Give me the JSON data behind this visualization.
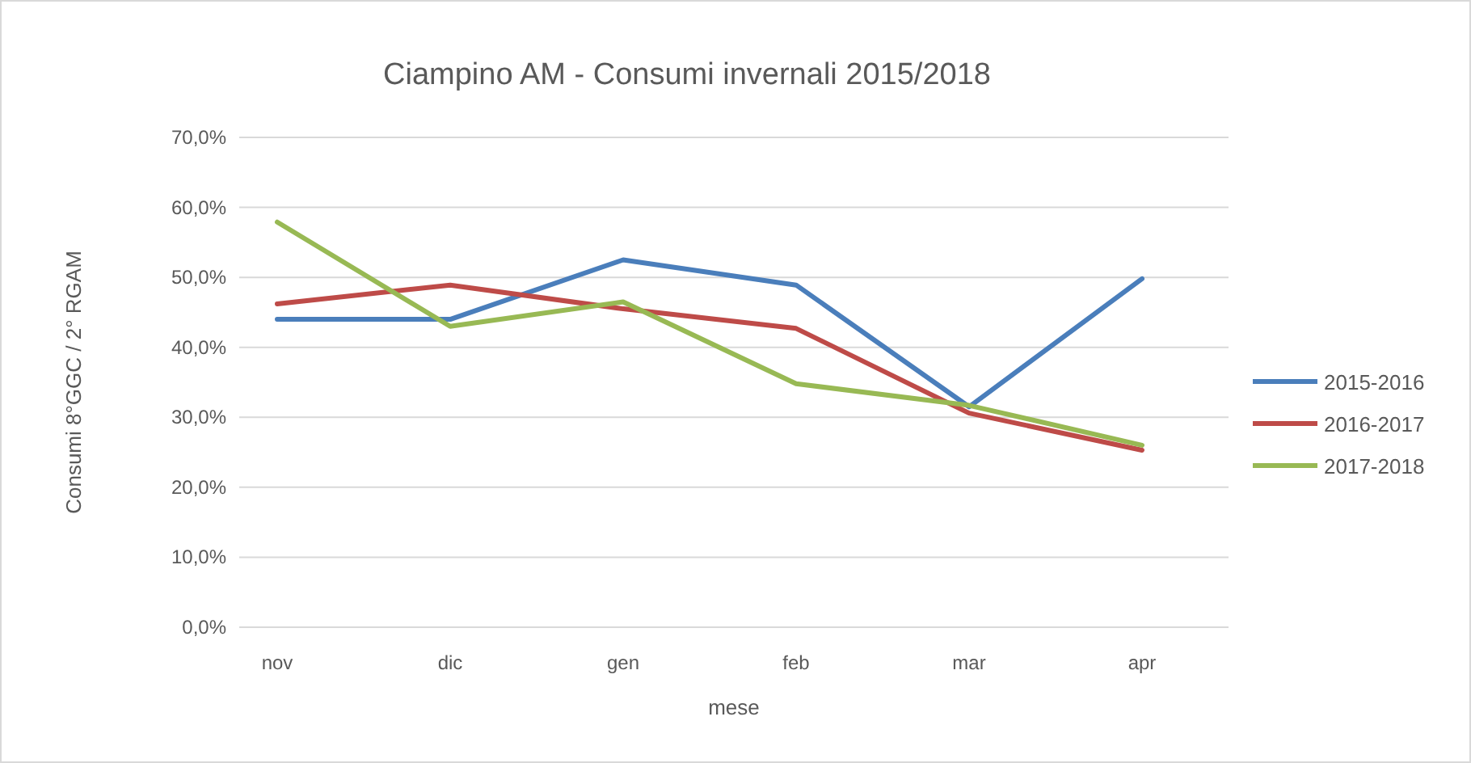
{
  "chart_data": {
    "type": "line",
    "title": "Ciampino AM - Consumi invernali 2015/2018",
    "xlabel": "mese",
    "ylabel": "Consumi 8°GGC / 2° RGAM",
    "categories": [
      "nov",
      "dic",
      "gen",
      "feb",
      "mar",
      "apr"
    ],
    "series": [
      {
        "name": "2015-2016",
        "color": "#4a7ebb",
        "values": [
          44.0,
          44.0,
          52.5,
          48.9,
          31.5,
          49.8
        ]
      },
      {
        "name": "2016-2017",
        "color": "#be4b48",
        "values": [
          46.2,
          48.9,
          45.5,
          42.7,
          30.6,
          25.3
        ]
      },
      {
        "name": "2017-2018",
        "color": "#98b954",
        "values": [
          57.9,
          43.0,
          46.5,
          34.8,
          31.7,
          26.0
        ]
      }
    ],
    "ylim": [
      0,
      70
    ],
    "yticks": [
      {
        "value": 0,
        "label": "0,0%"
      },
      {
        "value": 10,
        "label": "10,0%"
      },
      {
        "value": 20,
        "label": "20,0%"
      },
      {
        "value": 30,
        "label": "30,0%"
      },
      {
        "value": 40,
        "label": "40,0%"
      },
      {
        "value": 50,
        "label": "50,0%"
      },
      {
        "value": 60,
        "label": "60,0%"
      },
      {
        "value": 70,
        "label": "70,0%"
      }
    ],
    "grid": "y",
    "legend": "right",
    "marker": "none",
    "line_style": "solid"
  }
}
